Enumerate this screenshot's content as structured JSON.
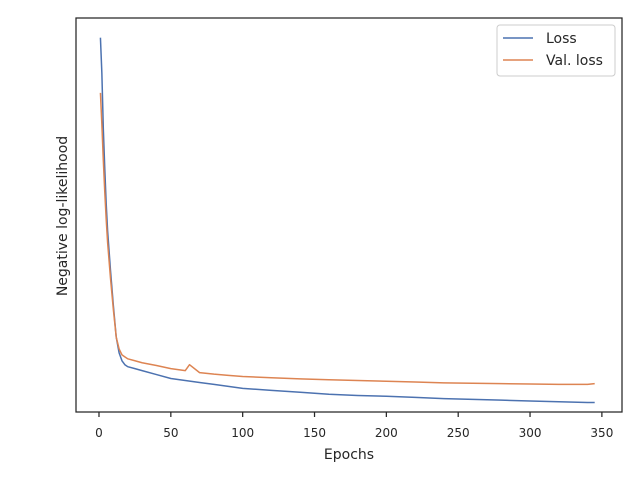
{
  "chart_data": {
    "type": "line",
    "title": "",
    "xlabel": "Epochs",
    "ylabel": "Negative log-likelihood",
    "xlim": [
      -16,
      364
    ],
    "ylim": [
      0,
      100
    ],
    "y_tick_labels_shown": false,
    "grid": false,
    "x_ticks": [
      0,
      50,
      100,
      150,
      200,
      250,
      300,
      350
    ],
    "x_tick_labels": [
      "0",
      "50",
      "100",
      "150",
      "200",
      "250",
      "300",
      "350"
    ],
    "legend": {
      "position": "top-right",
      "entries": [
        "Loss",
        "Val. loss"
      ]
    },
    "series": [
      {
        "name": "Loss",
        "color": "#4c72b0",
        "x": [
          1,
          2,
          3,
          4,
          5,
          6,
          8,
          10,
          12,
          14,
          16,
          18,
          20,
          25,
          30,
          40,
          50,
          60,
          70,
          80,
          90,
          100,
          120,
          140,
          160,
          180,
          200,
          220,
          240,
          260,
          280,
          300,
          320,
          340,
          345
        ],
        "y": [
          95,
          86,
          72,
          62,
          53,
          46,
          36,
          27,
          19,
          15,
          13,
          12,
          11.5,
          11,
          10.5,
          9.5,
          8.5,
          8.0,
          7.5,
          7.0,
          6.5,
          6.0,
          5.5,
          5.0,
          4.5,
          4.2,
          4.0,
          3.7,
          3.4,
          3.2,
          3.0,
          2.8,
          2.6,
          2.4,
          2.4
        ]
      },
      {
        "name": "Val. loss",
        "color": "#dd8452",
        "x": [
          1,
          2,
          3,
          4,
          5,
          6,
          8,
          10,
          12,
          14,
          16,
          18,
          20,
          25,
          30,
          40,
          50,
          60,
          63,
          70,
          80,
          90,
          100,
          120,
          140,
          160,
          180,
          200,
          220,
          240,
          260,
          280,
          300,
          320,
          340,
          345
        ],
        "y": [
          81,
          73,
          64,
          56,
          49,
          43,
          34,
          26,
          19,
          16,
          14.5,
          14,
          13.5,
          13,
          12.5,
          11.8,
          11.0,
          10.5,
          12.0,
          10.0,
          9.6,
          9.3,
          9.0,
          8.7,
          8.4,
          8.2,
          8.0,
          7.8,
          7.6,
          7.4,
          7.3,
          7.2,
          7.1,
          7.0,
          7.0,
          7.2
        ]
      }
    ]
  }
}
